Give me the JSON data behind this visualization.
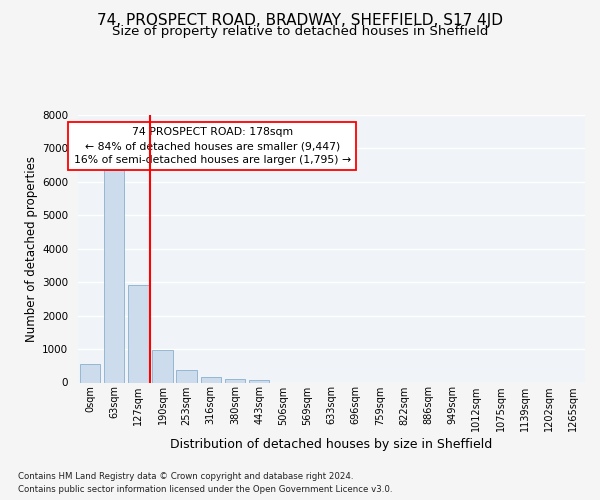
{
  "title1": "74, PROSPECT ROAD, BRADWAY, SHEFFIELD, S17 4JD",
  "title2": "Size of property relative to detached houses in Sheffield",
  "xlabel": "Distribution of detached houses by size in Sheffield",
  "ylabel": "Number of detached properties",
  "footer1": "Contains HM Land Registry data © Crown copyright and database right 2024.",
  "footer2": "Contains public sector information licensed under the Open Government Licence v3.0.",
  "bar_labels": [
    "0sqm",
    "63sqm",
    "127sqm",
    "190sqm",
    "253sqm",
    "316sqm",
    "380sqm",
    "443sqm",
    "506sqm",
    "569sqm",
    "633sqm",
    "696sqm",
    "759sqm",
    "822sqm",
    "886sqm",
    "949sqm",
    "1012sqm",
    "1075sqm",
    "1139sqm",
    "1202sqm",
    "1265sqm"
  ],
  "bar_values": [
    560,
    6370,
    2920,
    960,
    380,
    165,
    105,
    65,
    0,
    0,
    0,
    0,
    0,
    0,
    0,
    0,
    0,
    0,
    0,
    0,
    0
  ],
  "bar_color": "#ccdcec",
  "bar_edge_color": "#8ab0cc",
  "vline_x": 2.5,
  "vline_color": "red",
  "annotation_text": "74 PROSPECT ROAD: 178sqm\n← 84% of detached houses are smaller (9,447)\n16% of semi-detached houses are larger (1,795) →",
  "annotation_box_color": "white",
  "annotation_box_edge": "red",
  "ylim": [
    0,
    8000
  ],
  "yticks": [
    0,
    1000,
    2000,
    3000,
    4000,
    5000,
    6000,
    7000,
    8000
  ],
  "bg_color": "#f5f5f5",
  "plot_bg_color": "#f0f4f8",
  "grid_color": "#ffffff",
  "title1_fontsize": 11,
  "title2_fontsize": 9.5,
  "xlabel_fontsize": 9,
  "ylabel_fontsize": 8.5,
  "tick_fontsize": 7.5,
  "xtick_fontsize": 7
}
